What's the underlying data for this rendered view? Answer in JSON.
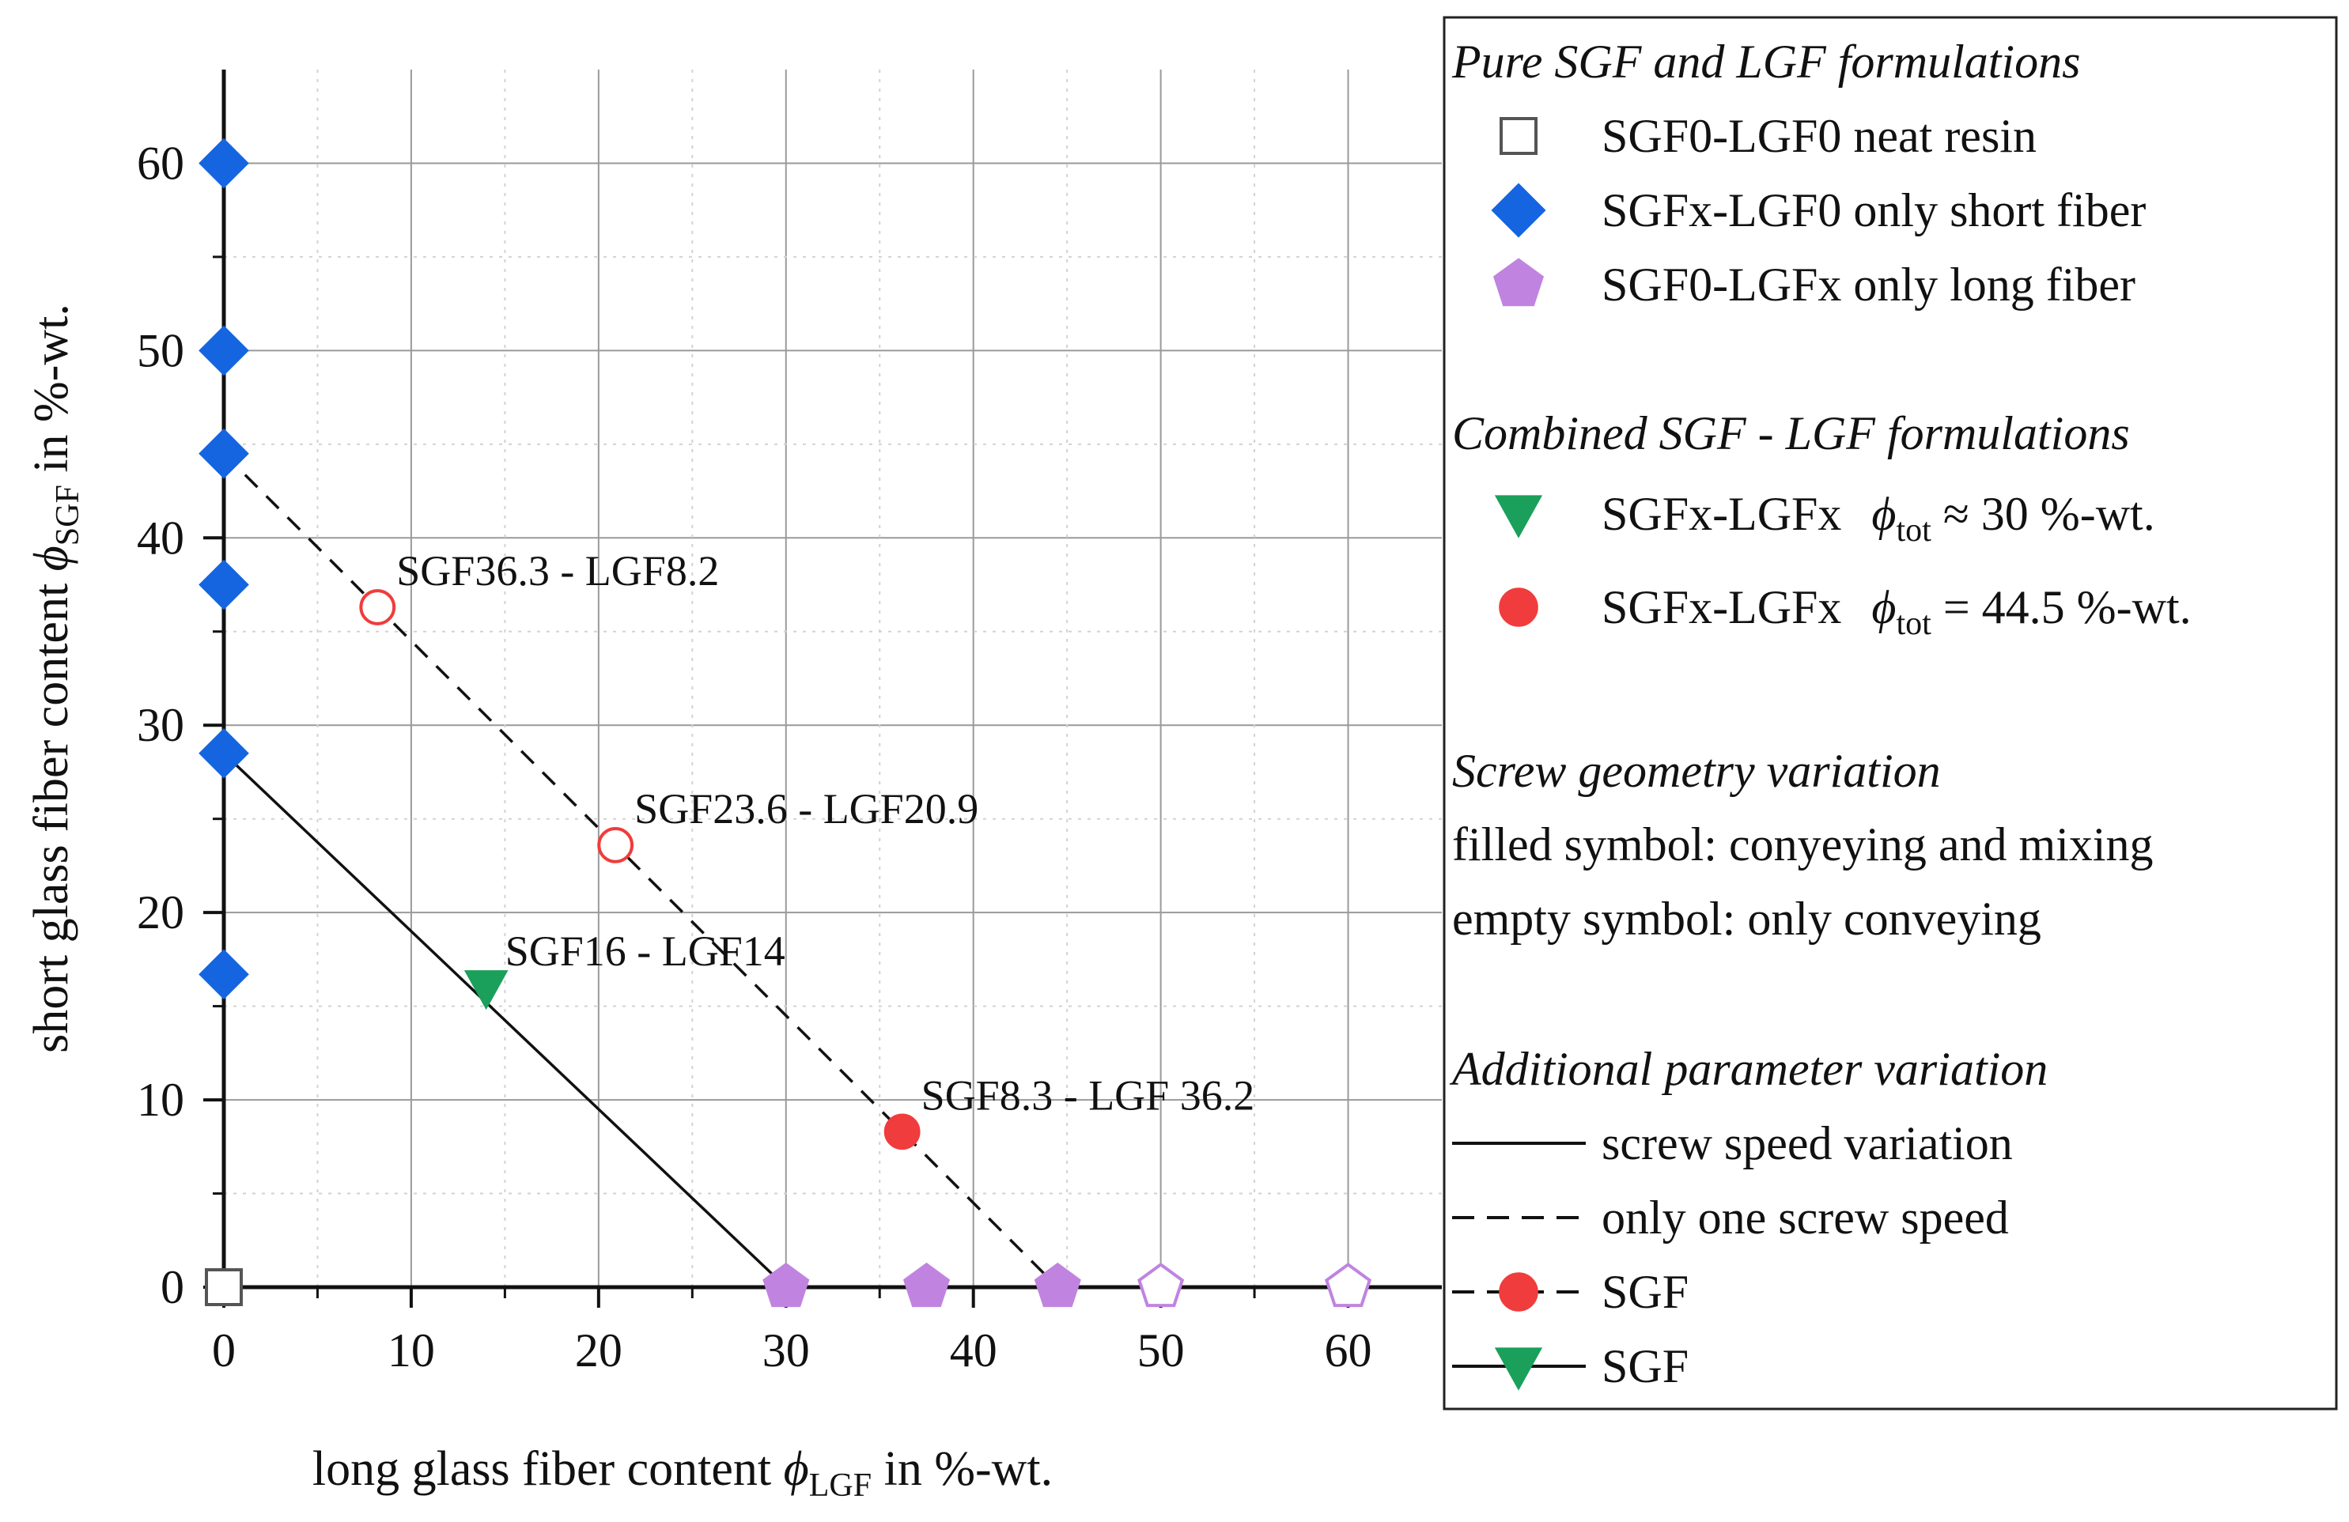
{
  "chart_data": {
    "type": "scatter",
    "title": "",
    "xlabel": {
      "pre": "long glass fiber content ",
      "sym": "ϕ",
      "sub": "LGF",
      "post": " in %-wt."
    },
    "ylabel": {
      "pre": "short glass fiber content ",
      "sym": "ϕ",
      "sub": "SGF",
      "post": " in %-wt."
    },
    "xlim": [
      0,
      65
    ],
    "ylim": [
      0,
      65
    ],
    "xticks": [
      0,
      10,
      20,
      30,
      40,
      50,
      60
    ],
    "yticks": [
      0,
      10,
      20,
      30,
      40,
      50,
      60
    ],
    "grid": true,
    "colors": {
      "blue": "#1565e0",
      "purple": "#c084e0",
      "green": "#1aa05a",
      "red": "#f03c3c",
      "gray": "#555555"
    },
    "series": [
      {
        "name": "SGF0-LGF0 neat resin",
        "marker": "square",
        "fill": "none",
        "color": "#555555",
        "points": [
          [
            0,
            0
          ]
        ]
      },
      {
        "name": "SGFx-LGF0 only short fiber",
        "marker": "diamond",
        "fill": "filled",
        "color": "#1565e0",
        "points": [
          [
            0,
            60
          ],
          [
            0,
            50
          ],
          [
            0,
            44.5
          ],
          [
            0,
            37.5
          ],
          [
            0,
            28.5
          ],
          [
            0,
            16.7
          ]
        ]
      },
      {
        "name": "SGF0-LGFx only long fiber (filled)",
        "marker": "pentagon",
        "fill": "filled",
        "color": "#c084e0",
        "points": [
          [
            30,
            0
          ],
          [
            37.5,
            0
          ],
          [
            44.5,
            0
          ]
        ]
      },
      {
        "name": "SGF0-LGFx only long fiber (empty)",
        "marker": "pentagon",
        "fill": "none",
        "color": "#c084e0",
        "points": [
          [
            50,
            0
          ],
          [
            60,
            0
          ]
        ]
      },
      {
        "name": "SGFx-LGFx phi_tot 30 (filled)",
        "marker": "triangle-down",
        "fill": "filled",
        "color": "#1aa05a",
        "points": [
          [
            14,
            16
          ]
        ]
      },
      {
        "name": "SGFx-LGFx phi_tot 44.5 (filled)",
        "marker": "circle",
        "fill": "filled",
        "color": "#f03c3c",
        "points": [
          [
            36.2,
            8.3
          ]
        ]
      },
      {
        "name": "SGFx-LGFx phi_tot 44.5 (empty)",
        "marker": "circle",
        "fill": "none",
        "color": "#f03c3c",
        "points": [
          [
            8.2,
            36.3
          ],
          [
            20.9,
            23.6
          ]
        ]
      }
    ],
    "lines": [
      {
        "name": "screw speed variation",
        "style": "solid",
        "points": [
          [
            0,
            28.5
          ],
          [
            30,
            0
          ]
        ]
      },
      {
        "name": "only one screw speed",
        "style": "dashed",
        "points": [
          [
            0,
            44.5
          ],
          [
            44.5,
            0
          ]
        ]
      }
    ],
    "annotations": [
      {
        "text": "SGF36.3 - LGF8.2",
        "x": 8.2,
        "y": 36.3
      },
      {
        "text": "SGF23.6 - LGF20.9",
        "x": 20.9,
        "y": 23.6
      },
      {
        "text": "SGF16 - LGF14",
        "x": 14,
        "y": 16
      },
      {
        "text": "SGF8.3 - LGF 36.2",
        "x": 36.2,
        "y": 8.3
      }
    ],
    "legend": {
      "position": "right",
      "sections": [
        {
          "title": "Pure SGF and LGF formulations",
          "entries": [
            {
              "kind": "marker",
              "marker": "square",
              "fill": "none",
              "color": "#555555",
              "label": "SGF0-LGF0 neat resin"
            },
            {
              "kind": "marker",
              "marker": "diamond",
              "fill": "filled",
              "color": "#1565e0",
              "label": "SGFx-LGF0 only short fiber"
            },
            {
              "kind": "marker",
              "marker": "pentagon",
              "fill": "filled",
              "color": "#c084e0",
              "label": "SGF0-LGFx only long fiber"
            }
          ]
        },
        {
          "title": "Combined SGF - LGF formulations",
          "entries": [
            {
              "kind": "marker",
              "marker": "triangle-down",
              "fill": "filled",
              "color": "#1aa05a",
              "label": "SGFx-LGFx",
              "phi": {
                "sym": "ϕ",
                "sub": "tot",
                "rel": " ≈ 30 %-wt."
              }
            },
            {
              "kind": "marker",
              "marker": "circle",
              "fill": "filled",
              "color": "#f03c3c",
              "label": "SGFx-LGFx",
              "phi": {
                "sym": "ϕ",
                "sub": "tot",
                "rel": " = 44.5 %-wt."
              }
            }
          ]
        },
        {
          "title": "Screw geometry variation",
          "entries": [
            {
              "kind": "text",
              "label": "filled symbol: conyeying and mixing"
            },
            {
              "kind": "text",
              "label": "empty symbol: only conveying"
            }
          ]
        },
        {
          "title": "Additional parameter variation",
          "entries": [
            {
              "kind": "line",
              "style": "solid",
              "label": "screw speed variation"
            },
            {
              "kind": "line",
              "style": "dashed",
              "label": "only one screw speed"
            },
            {
              "kind": "line-marker",
              "style": "dashed",
              "marker": "circle",
              "fill": "filled",
              "color": "#f03c3c",
              "label": "SGF"
            },
            {
              "kind": "line-marker",
              "style": "solid",
              "marker": "triangle-down",
              "fill": "filled",
              "color": "#1aa05a",
              "label": "SGF"
            }
          ]
        }
      ]
    }
  }
}
